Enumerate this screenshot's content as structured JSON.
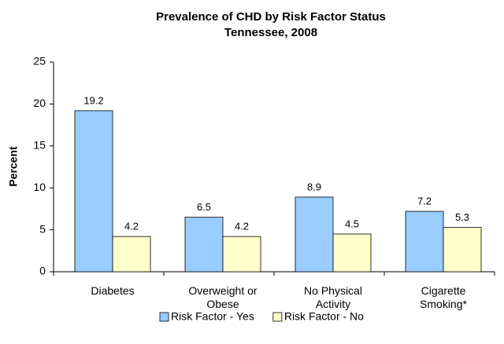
{
  "chart_data": {
    "type": "bar",
    "title": "Prevalence of CHD by Risk Factor Status",
    "subtitle": "Tennessee, 2008",
    "y_label": "Percent",
    "categories": [
      "Diabetes",
      "Overweight or\nObese",
      "No Physical\nActivity",
      "Cigarette\nSmoking*"
    ],
    "series": [
      {
        "name": "Risk Factor - Yes",
        "color": "#99ccff",
        "values": [
          19.2,
          6.5,
          8.9,
          7.2
        ]
      },
      {
        "name": "Risk Factor - No",
        "color": "#ffffcc",
        "values": [
          4.2,
          4.2,
          4.5,
          5.3
        ]
      }
    ],
    "ylim": [
      0,
      25
    ],
    "yticks": [
      0,
      5,
      10,
      15,
      20,
      25
    ],
    "grid": false,
    "legend": "bottom"
  }
}
